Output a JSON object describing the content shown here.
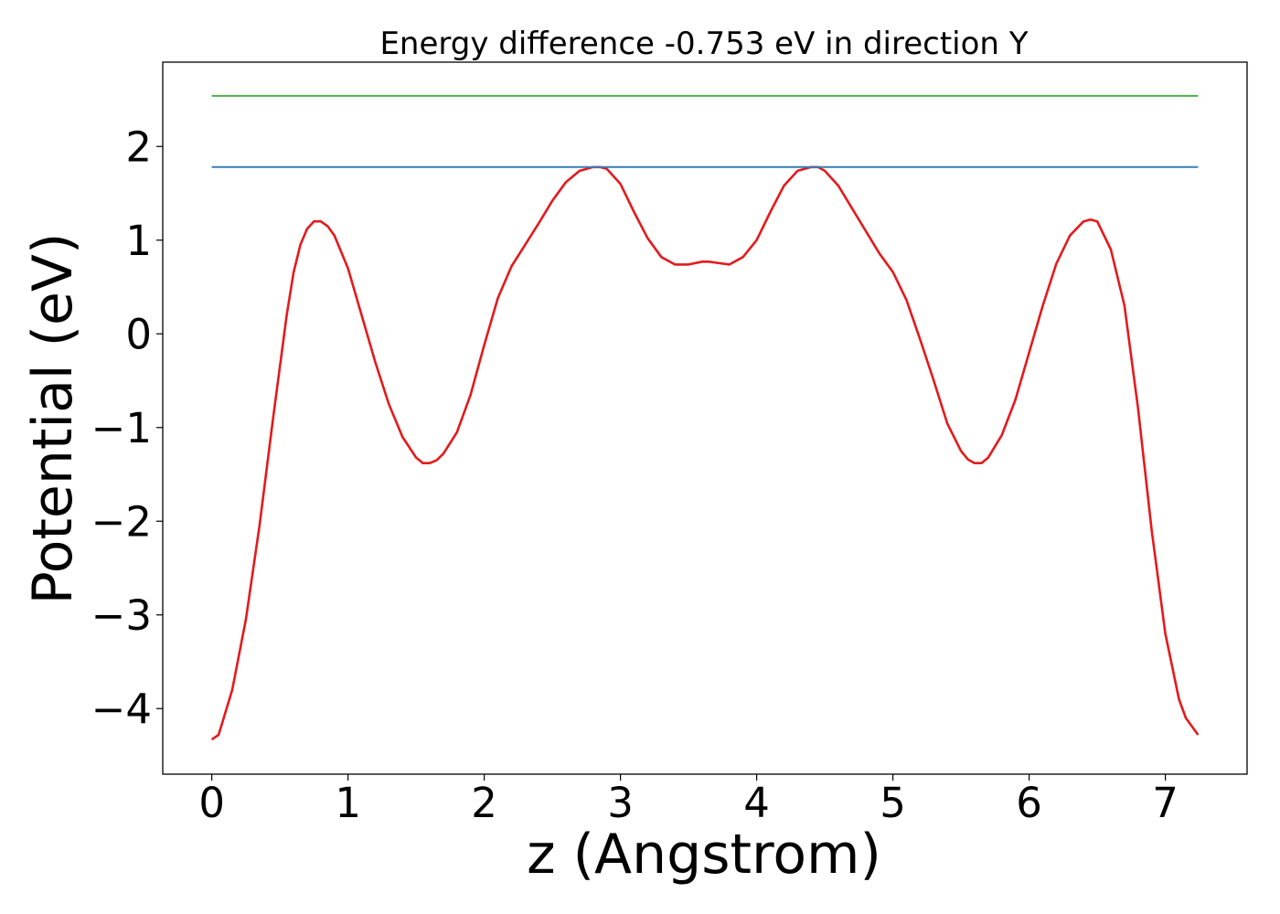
{
  "chart_data": {
    "type": "line",
    "title": "Energy difference -0.753 eV in direction Y",
    "xlabel": "z (Angstrom)",
    "ylabel": "Potential (eV)",
    "xlim": [
      -0.36,
      7.6
    ],
    "ylim": [
      -4.7,
      2.9
    ],
    "xticks": [
      0,
      1,
      2,
      3,
      4,
      5,
      6,
      7
    ],
    "xtick_labels": [
      "0",
      "1",
      "2",
      "3",
      "4",
      "5",
      "6",
      "7"
    ],
    "yticks": [
      -4,
      -3,
      -2,
      -1,
      0,
      1,
      2
    ],
    "ytick_labels": [
      "−4",
      "−3",
      "−2",
      "−1",
      "0",
      "1",
      "2"
    ],
    "grid": false,
    "series": [
      {
        "color": "#e41a1c",
        "x": [
          0,
          0.05,
          0.15,
          0.25,
          0.35,
          0.45,
          0.55,
          0.6,
          0.65,
          0.7,
          0.75,
          0.8,
          0.85,
          0.9,
          1.0,
          1.1,
          1.2,
          1.3,
          1.4,
          1.5,
          1.55,
          1.6,
          1.65,
          1.7,
          1.8,
          1.9,
          2.0,
          2.1,
          2.2,
          2.3,
          2.4,
          2.5,
          2.6,
          2.7,
          2.8,
          2.85,
          2.9,
          3.0,
          3.1,
          3.2,
          3.3,
          3.4,
          3.5,
          3.6,
          3.65,
          3.7,
          3.8,
          3.9,
          4.0,
          4.1,
          4.2,
          4.3,
          4.4,
          4.45,
          4.5,
          4.6,
          4.7,
          4.8,
          4.9,
          5.0,
          5.1,
          5.2,
          5.3,
          5.4,
          5.5,
          5.55,
          5.6,
          5.65,
          5.7,
          5.8,
          5.9,
          6.0,
          6.1,
          6.2,
          6.3,
          6.4,
          6.45,
          6.5,
          6.6,
          6.7,
          6.8,
          6.9,
          7.0,
          7.1,
          7.15,
          7.2,
          7.24
        ],
        "y": [
          -4.33,
          -4.28,
          -3.8,
          -3.05,
          -2.05,
          -0.9,
          0.2,
          0.65,
          0.95,
          1.12,
          1.2,
          1.2,
          1.15,
          1.05,
          0.7,
          0.2,
          -0.3,
          -0.75,
          -1.1,
          -1.32,
          -1.38,
          -1.38,
          -1.35,
          -1.28,
          -1.05,
          -0.65,
          -0.12,
          0.38,
          0.72,
          0.95,
          1.18,
          1.42,
          1.62,
          1.74,
          1.78,
          1.78,
          1.76,
          1.6,
          1.3,
          1.02,
          0.82,
          0.74,
          0.74,
          0.77,
          0.77,
          0.76,
          0.74,
          0.82,
          1.0,
          1.3,
          1.58,
          1.74,
          1.78,
          1.78,
          1.74,
          1.58,
          1.34,
          1.1,
          0.86,
          0.66,
          0.36,
          -0.06,
          -0.5,
          -0.96,
          -1.25,
          -1.34,
          -1.38,
          -1.38,
          -1.32,
          -1.08,
          -0.7,
          -0.2,
          0.3,
          0.75,
          1.05,
          1.2,
          1.22,
          1.2,
          0.9,
          0.3,
          -0.8,
          -2.1,
          -3.2,
          -3.9,
          -4.1,
          -4.2,
          -4.28
        ]
      },
      {
        "color": "#377eb8",
        "x": [
          0,
          7.24
        ],
        "y": [
          1.78,
          1.78
        ]
      },
      {
        "color": "#4daf4a",
        "x": [
          0,
          7.24
        ],
        "y": [
          2.54,
          2.54
        ]
      }
    ]
  }
}
